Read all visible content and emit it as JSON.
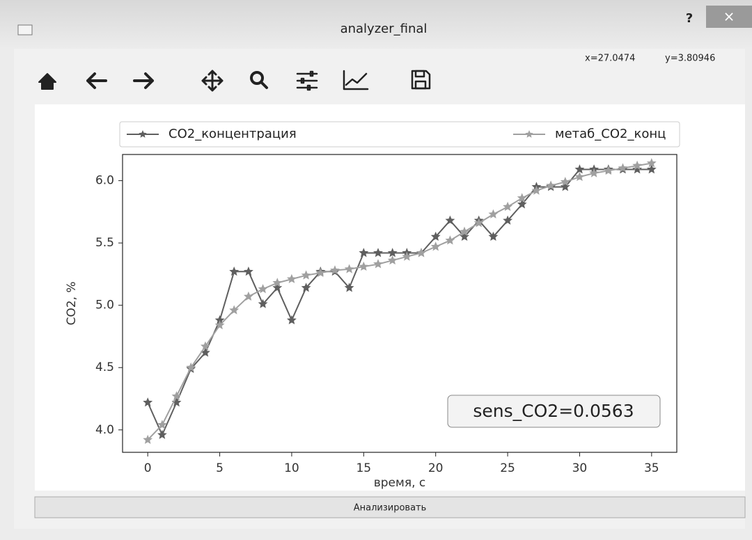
{
  "window": {
    "title": "analyzer_final",
    "help": "?",
    "close": "×"
  },
  "toolbar": {
    "x_coord": "x=27.0474",
    "y_coord": "y=3.80946"
  },
  "button": {
    "label": "Анализировать"
  },
  "chart_data": {
    "type": "line",
    "xlabel": "время, с",
    "ylabel": "CO2, %",
    "annotation": "sens_CO2=0.0563",
    "x": [
      0,
      1,
      2,
      3,
      4,
      5,
      6,
      7,
      8,
      9,
      10,
      11,
      12,
      13,
      14,
      15,
      16,
      17,
      18,
      19,
      20,
      21,
      22,
      23,
      24,
      25,
      26,
      27,
      28,
      29,
      30,
      31,
      32,
      33,
      34,
      35
    ],
    "series": [
      {
        "name": "CO2_концентрация",
        "color": "#5f5f5f",
        "values": [
          4.22,
          3.96,
          4.22,
          4.49,
          4.62,
          4.88,
          5.27,
          5.27,
          5.01,
          5.14,
          4.88,
          5.14,
          5.27,
          5.27,
          5.14,
          5.42,
          5.42,
          5.42,
          5.42,
          5.42,
          5.55,
          5.68,
          5.55,
          5.68,
          5.55,
          5.68,
          5.81,
          5.95,
          5.95,
          5.95,
          6.09,
          6.09,
          6.09,
          6.09,
          6.09,
          6.09
        ]
      },
      {
        "name": "метаб_CO2_конц",
        "color": "#a0a0a0",
        "values": [
          3.92,
          4.04,
          4.27,
          4.5,
          4.67,
          4.84,
          4.96,
          5.07,
          5.13,
          5.18,
          5.21,
          5.24,
          5.26,
          5.28,
          5.29,
          5.31,
          5.33,
          5.36,
          5.39,
          5.42,
          5.47,
          5.52,
          5.59,
          5.66,
          5.73,
          5.79,
          5.86,
          5.92,
          5.96,
          5.99,
          6.03,
          6.06,
          6.08,
          6.1,
          6.12,
          6.14
        ]
      }
    ],
    "xlim": [
      -1.75,
      36.75
    ],
    "ylim": [
      3.82,
      6.21
    ],
    "xticks": [
      0,
      5,
      10,
      15,
      20,
      25,
      30,
      35
    ],
    "yticks": [
      {
        "value": 4,
        "label": "4.0"
      },
      4.5,
      {
        "value": 5,
        "label": "5.0"
      },
      5.5,
      {
        "value": 6,
        "label": "6.0"
      }
    ],
    "legend": "top",
    "marker": "star"
  }
}
